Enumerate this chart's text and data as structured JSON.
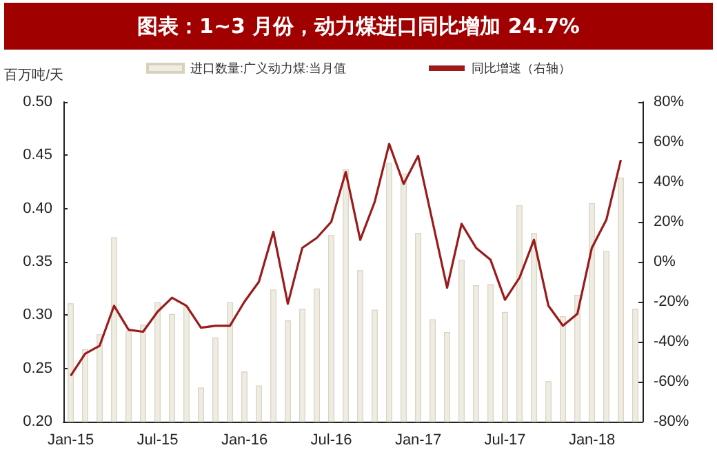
{
  "chart_data": {
    "type": "bar",
    "title": "图表：1~3 月份，动力煤进口同比增加 24.7%",
    "ylabel": "百万吨/天",
    "categories": [
      "Jan-15",
      null,
      null,
      null,
      null,
      null,
      "Jul-15",
      null,
      null,
      null,
      null,
      null,
      "Jan-16",
      null,
      null,
      null,
      null,
      null,
      "Jul-16",
      null,
      null,
      null,
      null,
      null,
      "Jan-17",
      null,
      null,
      null,
      null,
      null,
      "Jul-17",
      null,
      null,
      null,
      null,
      null,
      "Jan-18",
      null,
      null,
      null
    ],
    "series": [
      {
        "name": "进口数量:广义动力煤:当月值",
        "color": "#efece3",
        "values": [
          0.311,
          0.268,
          0.282,
          0.373,
          0.285,
          0.291,
          0.312,
          0.301,
          0.308,
          0.232,
          0.279,
          0.312,
          0.247,
          0.234,
          0.324,
          0.295,
          0.306,
          0.325,
          0.375,
          0.437,
          0.342,
          0.305,
          0.443,
          0.433,
          0.377,
          0.296,
          0.284,
          0.352,
          0.328,
          0.329,
          0.303,
          0.403,
          0.377,
          0.238,
          0.299,
          0.319,
          0.405,
          0.36,
          0.429,
          0.306
        ]
      },
      {
        "name": "同比增速（右轴）",
        "type": "line",
        "axis": "y2",
        "color": "#9b1b1b",
        "values": [
          -57,
          -46,
          -42,
          -22,
          -34,
          -35,
          -25,
          -18,
          -22,
          -33,
          -32,
          -32,
          -20,
          -10,
          15,
          -21,
          7,
          12,
          20,
          45,
          11,
          30,
          59,
          39,
          53,
          20,
          -13,
          19,
          7,
          1,
          -19,
          -8,
          11,
          -22,
          -32,
          -26,
          7,
          21,
          51,
          null
        ]
      }
    ],
    "ylim": [
      0.2,
      0.5
    ],
    "yticks": [
      {
        "value": 0.2,
        "label": "0.20"
      },
      {
        "value": 0.25,
        "label": "0.25"
      },
      {
        "value": 0.3,
        "label": "0.30"
      },
      {
        "value": 0.35,
        "label": "0.35"
      },
      {
        "value": 0.4,
        "label": "0.40"
      },
      {
        "value": 0.45,
        "label": "0.45"
      },
      {
        "value": 0.5,
        "label": "0.50"
      }
    ],
    "y2lim": [
      -80,
      80
    ],
    "y2ticks": [
      {
        "value": -80,
        "label": "-80%"
      },
      {
        "value": -60,
        "label": "-60%"
      },
      {
        "value": -40,
        "label": "-40%"
      },
      {
        "value": -20,
        "label": "-20%"
      },
      {
        "value": 0,
        "label": "0%"
      },
      {
        "value": 20,
        "label": "20%"
      },
      {
        "value": 40,
        "label": "40%"
      },
      {
        "value": 60,
        "label": "60%"
      },
      {
        "value": 80,
        "label": "80%"
      }
    ],
    "legend": "top",
    "grid": false,
    "marker": "none"
  }
}
